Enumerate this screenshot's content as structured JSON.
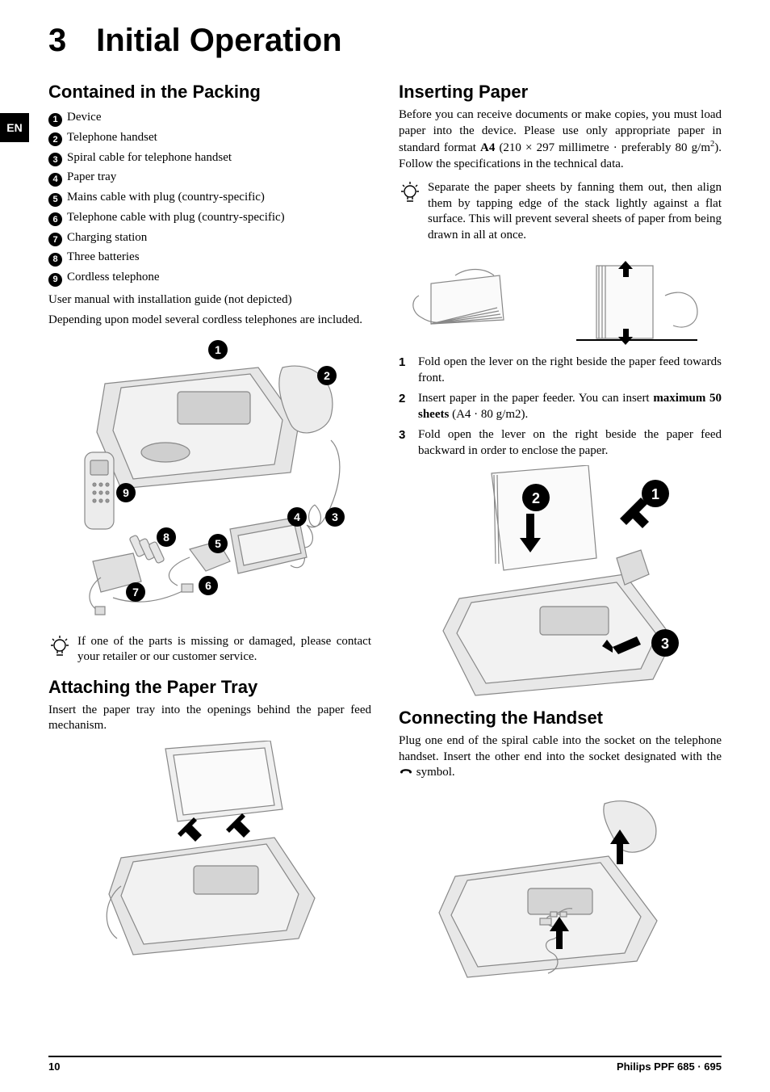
{
  "lang_tab": "EN",
  "chapter_number": "3",
  "chapter_title": "Initial Operation",
  "left": {
    "packing_heading": "Contained in the Packing",
    "packing_items": [
      "Device",
      "Telephone handset",
      "Spiral cable for telephone handset",
      "Paper tray",
      "Mains cable with plug (country-specific)",
      "Telephone cable with plug (country-specific)",
      "Charging station",
      "Three batteries",
      "Cordless telephone"
    ],
    "packing_note1": "User manual with installation guide (not depicted)",
    "packing_note2": "Depending upon model several cordless telephones are included.",
    "missing_note": "If one of the parts is missing or damaged, please contact your retailer or our customer service.",
    "tray_heading": "Attaching the Paper Tray",
    "tray_text": "Insert the paper tray into the openings behind the paper feed mechanism."
  },
  "right": {
    "insert_heading": "Inserting Paper",
    "insert_intro_pre": "Before you can receive documents or make copies, you must load paper into the device. Please use only appropriate paper in standard format ",
    "insert_intro_bold": "A4",
    "insert_intro_mid": " (210 × 297 millimetre · preferably 80 g/m",
    "insert_intro_sup": "2",
    "insert_intro_post": "). Follow the specifications in the technical data.",
    "fan_note": "Separate the paper sheets by fanning them out, then align them by tapping edge of the stack lightly against a flat surface. This will prevent several sheets of paper from being drawn in all at once.",
    "steps": [
      {
        "n": "1",
        "text_pre": "Fold open the lever on the right beside the paper feed towards front.",
        "bold": "",
        "text_post": ""
      },
      {
        "n": "2",
        "text_pre": "Insert paper in the paper feeder. You can insert ",
        "bold": "maximum 50 sheets",
        "text_post": " (A4 · 80 g/m2)."
      },
      {
        "n": "3",
        "text_pre": "Fold open the lever on the right beside the paper feed backward in order to enclose the paper.",
        "bold": "",
        "text_post": ""
      }
    ],
    "handset_heading": "Connecting the Handset",
    "handset_text_pre": "Plug one end of the spiral cable into the socket on the telephone handset. Insert the other end into the socket designated with the ",
    "handset_text_post": " symbol."
  },
  "footer": {
    "page": "10",
    "doc": "Philips PPF 685 · 695"
  },
  "colors": {
    "text": "#000000",
    "bg": "#ffffff",
    "illus_stroke": "#888888",
    "illus_fill": "#d8d8d8"
  }
}
